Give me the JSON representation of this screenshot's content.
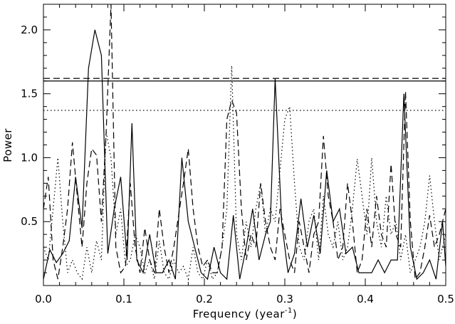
{
  "chart_data": {
    "type": "line",
    "xlabel": "Frequency (year",
    "xlabel_sup": "-1",
    "xlabel_end": ")",
    "ylabel": "Power",
    "xlim": [
      0.0,
      0.5
    ],
    "ylim": [
      0.0,
      2.2
    ],
    "grid": false,
    "x_ticks": [
      "0.0",
      "0.1",
      "0.2",
      "0.3",
      "0.4",
      "0.5"
    ],
    "y_ticks": [
      "0.5",
      "1.0",
      "1.5",
      "2.0"
    ],
    "series": [
      {
        "style": "solid",
        "x": [
          0.0,
          0.008,
          0.016,
          0.024,
          0.032,
          0.04,
          0.048,
          0.056,
          0.064,
          0.072,
          0.08,
          0.088,
          0.096,
          0.104,
          0.11,
          0.116,
          0.124,
          0.132,
          0.14,
          0.148,
          0.156,
          0.164,
          0.172,
          0.18,
          0.188,
          0.196,
          0.204,
          0.212,
          0.22,
          0.228,
          0.236,
          0.244,
          0.252,
          0.26,
          0.268,
          0.276,
          0.282,
          0.288,
          0.296,
          0.304,
          0.312,
          0.32,
          0.328,
          0.336,
          0.344,
          0.352,
          0.36,
          0.368,
          0.376,
          0.384,
          0.392,
          0.4,
          0.408,
          0.416,
          0.424,
          0.432,
          0.44,
          0.448,
          0.456,
          0.464,
          0.472,
          0.48,
          0.488,
          0.496,
          0.5
        ],
        "y": [
          0.05,
          0.28,
          0.18,
          0.25,
          0.35,
          0.85,
          0.45,
          1.7,
          2.0,
          1.8,
          0.25,
          0.6,
          0.85,
          0.2,
          1.27,
          0.2,
          0.1,
          0.4,
          0.1,
          0.1,
          0.2,
          0.05,
          1.0,
          0.5,
          0.3,
          0.1,
          0.05,
          0.3,
          0.1,
          0.05,
          0.55,
          0.05,
          0.3,
          0.6,
          0.2,
          0.4,
          0.5,
          1.62,
          0.5,
          0.1,
          0.25,
          0.68,
          0.3,
          0.55,
          0.25,
          0.9,
          0.5,
          0.6,
          0.25,
          0.3,
          0.1,
          0.1,
          0.1,
          0.2,
          0.1,
          0.2,
          0.2,
          1.5,
          0.3,
          0.05,
          0.1,
          0.2,
          0.05,
          0.5,
          0.15
        ]
      },
      {
        "style": "dashed",
        "x": [
          0.0,
          0.006,
          0.012,
          0.018,
          0.024,
          0.03,
          0.036,
          0.042,
          0.048,
          0.054,
          0.06,
          0.066,
          0.072,
          0.078,
          0.084,
          0.09,
          0.096,
          0.102,
          0.108,
          0.114,
          0.12,
          0.126,
          0.132,
          0.138,
          0.144,
          0.15,
          0.156,
          0.162,
          0.168,
          0.174,
          0.18,
          0.186,
          0.192,
          0.198,
          0.204,
          0.21,
          0.216,
          0.222,
          0.228,
          0.234,
          0.24,
          0.246,
          0.252,
          0.258,
          0.264,
          0.27,
          0.276,
          0.282,
          0.288,
          0.294,
          0.3,
          0.306,
          0.312,
          0.318,
          0.324,
          0.33,
          0.336,
          0.342,
          0.348,
          0.354,
          0.36,
          0.366,
          0.372,
          0.378,
          0.384,
          0.39,
          0.396,
          0.402,
          0.408,
          0.414,
          0.42,
          0.426,
          0.432,
          0.438,
          0.444,
          0.45,
          0.456,
          0.462,
          0.468,
          0.474,
          0.48,
          0.486,
          0.492,
          0.5
        ],
        "y": [
          0.6,
          0.85,
          0.2,
          0.05,
          0.3,
          0.6,
          1.12,
          0.7,
          0.3,
          0.8,
          1.07,
          1.02,
          0.5,
          1.2,
          2.2,
          0.3,
          0.1,
          0.15,
          0.8,
          0.3,
          0.1,
          0.45,
          0.2,
          0.1,
          0.6,
          0.3,
          0.1,
          0.3,
          0.55,
          0.8,
          1.07,
          0.6,
          0.3,
          0.15,
          0.2,
          0.1,
          0.1,
          0.3,
          1.3,
          1.45,
          1.35,
          0.6,
          0.2,
          0.4,
          0.3,
          0.8,
          0.5,
          0.3,
          0.2,
          0.6,
          0.4,
          0.2,
          0.1,
          0.5,
          0.3,
          0.1,
          0.4,
          0.5,
          1.17,
          0.7,
          0.5,
          0.2,
          0.3,
          0.8,
          0.5,
          0.1,
          0.2,
          0.6,
          0.3,
          0.7,
          0.4,
          0.3,
          0.95,
          0.4,
          0.3,
          1.52,
          0.5,
          0.05,
          0.1,
          0.3,
          0.55,
          0.3,
          0.4,
          0.6
        ]
      },
      {
        "style": "dotted",
        "x": [
          0.0,
          0.006,
          0.012,
          0.018,
          0.024,
          0.03,
          0.036,
          0.042,
          0.048,
          0.054,
          0.06,
          0.066,
          0.072,
          0.078,
          0.084,
          0.09,
          0.096,
          0.102,
          0.108,
          0.114,
          0.12,
          0.126,
          0.132,
          0.138,
          0.144,
          0.15,
          0.156,
          0.162,
          0.168,
          0.174,
          0.18,
          0.186,
          0.192,
          0.198,
          0.204,
          0.21,
          0.216,
          0.222,
          0.228,
          0.234,
          0.24,
          0.246,
          0.252,
          0.258,
          0.264,
          0.27,
          0.276,
          0.282,
          0.288,
          0.294,
          0.3,
          0.306,
          0.312,
          0.318,
          0.324,
          0.33,
          0.336,
          0.342,
          0.348,
          0.354,
          0.36,
          0.366,
          0.372,
          0.378,
          0.384,
          0.39,
          0.396,
          0.402,
          0.408,
          0.414,
          0.42,
          0.426,
          0.432,
          0.438,
          0.444,
          0.45,
          0.456,
          0.462,
          0.468,
          0.474,
          0.48,
          0.486,
          0.492,
          0.5
        ],
        "y": [
          0.3,
          0.2,
          0.6,
          1.0,
          0.5,
          0.1,
          0.2,
          0.1,
          0.05,
          0.3,
          0.1,
          0.35,
          0.2,
          1.2,
          1.0,
          0.4,
          0.6,
          0.15,
          0.2,
          0.4,
          0.3,
          0.1,
          0.2,
          0.05,
          0.35,
          0.1,
          0.05,
          0.2,
          0.1,
          0.15,
          0.05,
          0.3,
          0.1,
          0.05,
          0.2,
          0.05,
          0.1,
          0.3,
          0.6,
          1.72,
          0.4,
          0.2,
          0.5,
          0.3,
          0.6,
          0.8,
          0.4,
          0.6,
          0.5,
          0.9,
          1.3,
          1.4,
          0.8,
          0.3,
          0.2,
          0.5,
          0.6,
          0.2,
          0.7,
          0.4,
          0.3,
          0.5,
          0.2,
          0.3,
          0.6,
          0.99,
          0.7,
          0.4,
          1.0,
          0.5,
          0.3,
          0.7,
          0.4,
          0.5,
          0.2,
          0.4,
          0.1,
          0.2,
          0.3,
          0.5,
          0.86,
          0.5,
          0.2,
          0.4
        ]
      }
    ],
    "thresholds": [
      {
        "style": "dashed",
        "y": 1.62
      },
      {
        "style": "solid",
        "y": 1.6
      },
      {
        "style": "dotted",
        "y": 1.37
      }
    ]
  }
}
